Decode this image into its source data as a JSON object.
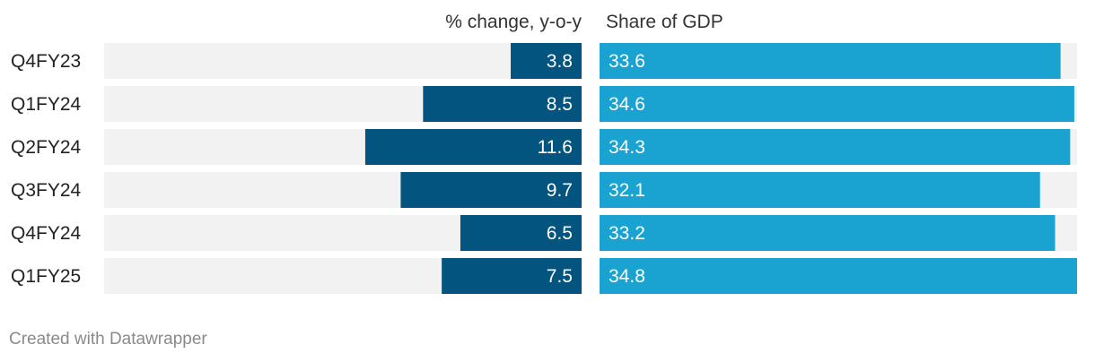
{
  "chart_data": {
    "type": "bar",
    "categories": [
      "Q4FY23",
      "Q1FY24",
      "Q2FY24",
      "Q3FY24",
      "Q4FY24",
      "Q1FY25"
    ],
    "series": [
      {
        "name": "% change, y-o-y",
        "values": [
          3.8,
          8.5,
          11.6,
          9.7,
          6.5,
          7.5
        ],
        "max": 25.6,
        "color": "#03547f",
        "direction": "leftward"
      },
      {
        "name": "Share of GDP",
        "values": [
          33.6,
          34.6,
          34.3,
          32.1,
          33.2,
          34.8
        ],
        "max": 34.8,
        "color": "#1aa3d0",
        "direction": "rightward"
      }
    ],
    "track_color": "#f2f2f2"
  },
  "footer": {
    "credit": "Created with Datawrapper"
  }
}
